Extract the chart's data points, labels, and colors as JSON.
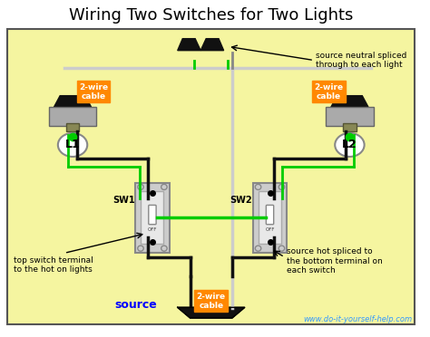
{
  "title": "Wiring Two Switches for Two Lights",
  "bg_color": "#f5f5a0",
  "outer_bg": "#ffffff",
  "title_color": "#000000",
  "title_fontsize": 13,
  "watermark": "www.do-it-yourself-help.com",
  "watermark_color": "#3399ff",
  "label_source": "source",
  "label_source_color": "#0000ff",
  "orange_label_color": "#ff8800",
  "orange_bg": "#ff8800",
  "wire_colors": {
    "black": "#111111",
    "white": "#cccccc",
    "green": "#228B22",
    "gray": "#888888",
    "bright_green": "#00cc00"
  },
  "annotations": {
    "top_right": "source neutral spliced\nthrough to each light",
    "bottom_left": "top switch terminal\nto the hot on lights",
    "bottom_right": "source hot spliced to\nthe bottom terminal on\neach switch"
  },
  "switch_labels": [
    "SW1",
    "SW2"
  ],
  "light_labels": [
    "L1",
    "L2"
  ],
  "cable_labels": [
    "2-wire\ncable",
    "2-wire\ncable",
    "2-wire\ncable"
  ]
}
